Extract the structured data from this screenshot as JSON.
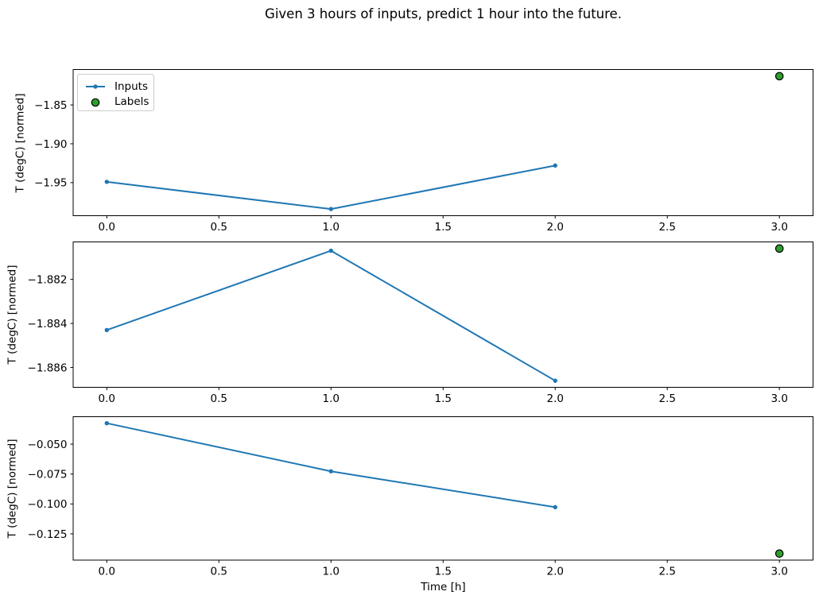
{
  "figure": {
    "title": "Given 3 hours of inputs, predict 1 hour into the future.",
    "xlabel": "Time [h]",
    "background": "#ffffff"
  },
  "legend": {
    "visible": true,
    "loc": "upper left",
    "items": [
      {
        "label": "Inputs",
        "type": "line-with-marker",
        "color": "#1f77b4"
      },
      {
        "label": "Labels",
        "type": "circle-marker",
        "color": "#2ca02c",
        "edge_color": "#000000"
      }
    ]
  },
  "chart_data": [
    {
      "type": "line",
      "ylabel": "T (degC) [normed]",
      "xlim": [
        -0.15,
        3.15
      ],
      "ylim": [
        -1.99255,
        -1.80445
      ],
      "grid": false,
      "x_ticks": [
        0.0,
        0.5,
        1.0,
        1.5,
        2.0,
        2.5,
        3.0
      ],
      "x_tick_labels": [
        "0.0",
        "0.5",
        "1.0",
        "1.5",
        "2.0",
        "2.5",
        "3.0"
      ],
      "y_ticks": [
        -1.85,
        -1.9,
        -1.95
      ],
      "y_tick_labels": [
        "−1.85",
        "−1.90",
        "−1.95"
      ],
      "series": [
        {
          "name": "Inputs",
          "type": "line",
          "color": "#1f77b4",
          "x": [
            0,
            1,
            2
          ],
          "y": [
            -1.949,
            -1.984,
            -1.928
          ]
        },
        {
          "name": "Labels",
          "type": "scatter",
          "color": "#2ca02c",
          "edge_color": "#000000",
          "x": [
            3
          ],
          "y": [
            -1.813
          ]
        }
      ]
    },
    {
      "type": "line",
      "ylabel": "T (degC) [normed]",
      "xlim": [
        -0.15,
        3.15
      ],
      "ylim": [
        -1.8869,
        -1.8803
      ],
      "grid": false,
      "x_ticks": [
        0.0,
        0.5,
        1.0,
        1.5,
        2.0,
        2.5,
        3.0
      ],
      "x_tick_labels": [
        "0.0",
        "0.5",
        "1.0",
        "1.5",
        "2.0",
        "2.5",
        "3.0"
      ],
      "y_ticks": [
        -1.882,
        -1.884,
        -1.886
      ],
      "y_tick_labels": [
        "−1.882",
        "−1.884",
        "−1.886"
      ],
      "series": [
        {
          "name": "Inputs",
          "type": "line",
          "color": "#1f77b4",
          "x": [
            0,
            1,
            2
          ],
          "y": [
            -1.8843,
            -1.8807,
            -1.8866
          ]
        },
        {
          "name": "Labels",
          "type": "scatter",
          "color": "#2ca02c",
          "edge_color": "#000000",
          "x": [
            3
          ],
          "y": [
            -1.8806
          ]
        }
      ]
    },
    {
      "type": "line",
      "xlabel": "Time [h]",
      "ylabel": "T (degC) [normed]",
      "xlim": [
        -0.15,
        3.15
      ],
      "ylim": [
        -0.14695,
        -0.02705
      ],
      "grid": false,
      "x_ticks": [
        0.0,
        0.5,
        1.0,
        1.5,
        2.0,
        2.5,
        3.0
      ],
      "x_tick_labels": [
        "0.0",
        "0.5",
        "1.0",
        "1.5",
        "2.0",
        "2.5",
        "3.0"
      ],
      "y_ticks": [
        -0.05,
        -0.075,
        -0.1,
        -0.125
      ],
      "y_tick_labels": [
        "−0.050",
        "−0.075",
        "−0.100",
        "−0.125"
      ],
      "series": [
        {
          "name": "Inputs",
          "type": "line",
          "color": "#1f77b4",
          "x": [
            0,
            1,
            2
          ],
          "y": [
            -0.0325,
            -0.0727,
            -0.1027
          ]
        },
        {
          "name": "Labels",
          "type": "scatter",
          "color": "#2ca02c",
          "edge_color": "#000000",
          "x": [
            3
          ],
          "y": [
            -0.1415
          ]
        }
      ]
    }
  ]
}
